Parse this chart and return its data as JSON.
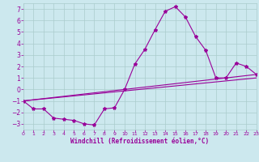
{
  "xlabel": "Windchill (Refroidissement éolien,°C)",
  "bg_color": "#cce8ee",
  "line_color": "#990099",
  "grid_color": "#aacccc",
  "xlim": [
    0,
    23
  ],
  "ylim": [
    -3.5,
    7.5
  ],
  "yticks": [
    -3,
    -2,
    -1,
    0,
    1,
    2,
    3,
    4,
    5,
    6,
    7
  ],
  "xticks": [
    0,
    1,
    2,
    3,
    4,
    5,
    6,
    7,
    8,
    9,
    10,
    11,
    12,
    13,
    14,
    15,
    16,
    17,
    18,
    19,
    20,
    21,
    22,
    23
  ],
  "main_x": [
    0,
    1,
    2,
    3,
    4,
    5,
    6,
    7,
    8,
    9,
    10,
    11,
    12,
    13,
    14,
    15,
    16,
    17,
    18,
    19,
    20,
    21,
    22,
    23
  ],
  "main_y": [
    -1.0,
    -1.7,
    -1.7,
    -2.5,
    -2.6,
    -2.7,
    -3.0,
    -3.1,
    -1.7,
    -1.6,
    0.0,
    2.2,
    3.5,
    5.2,
    6.8,
    7.2,
    6.3,
    4.6,
    3.4,
    1.0,
    1.0,
    2.3,
    2.0,
    1.3
  ],
  "line2_x": [
    0,
    23
  ],
  "line2_y": [
    -1.0,
    1.0
  ],
  "line3_x": [
    0,
    23
  ],
  "line3_y": [
    -1.0,
    1.3
  ]
}
